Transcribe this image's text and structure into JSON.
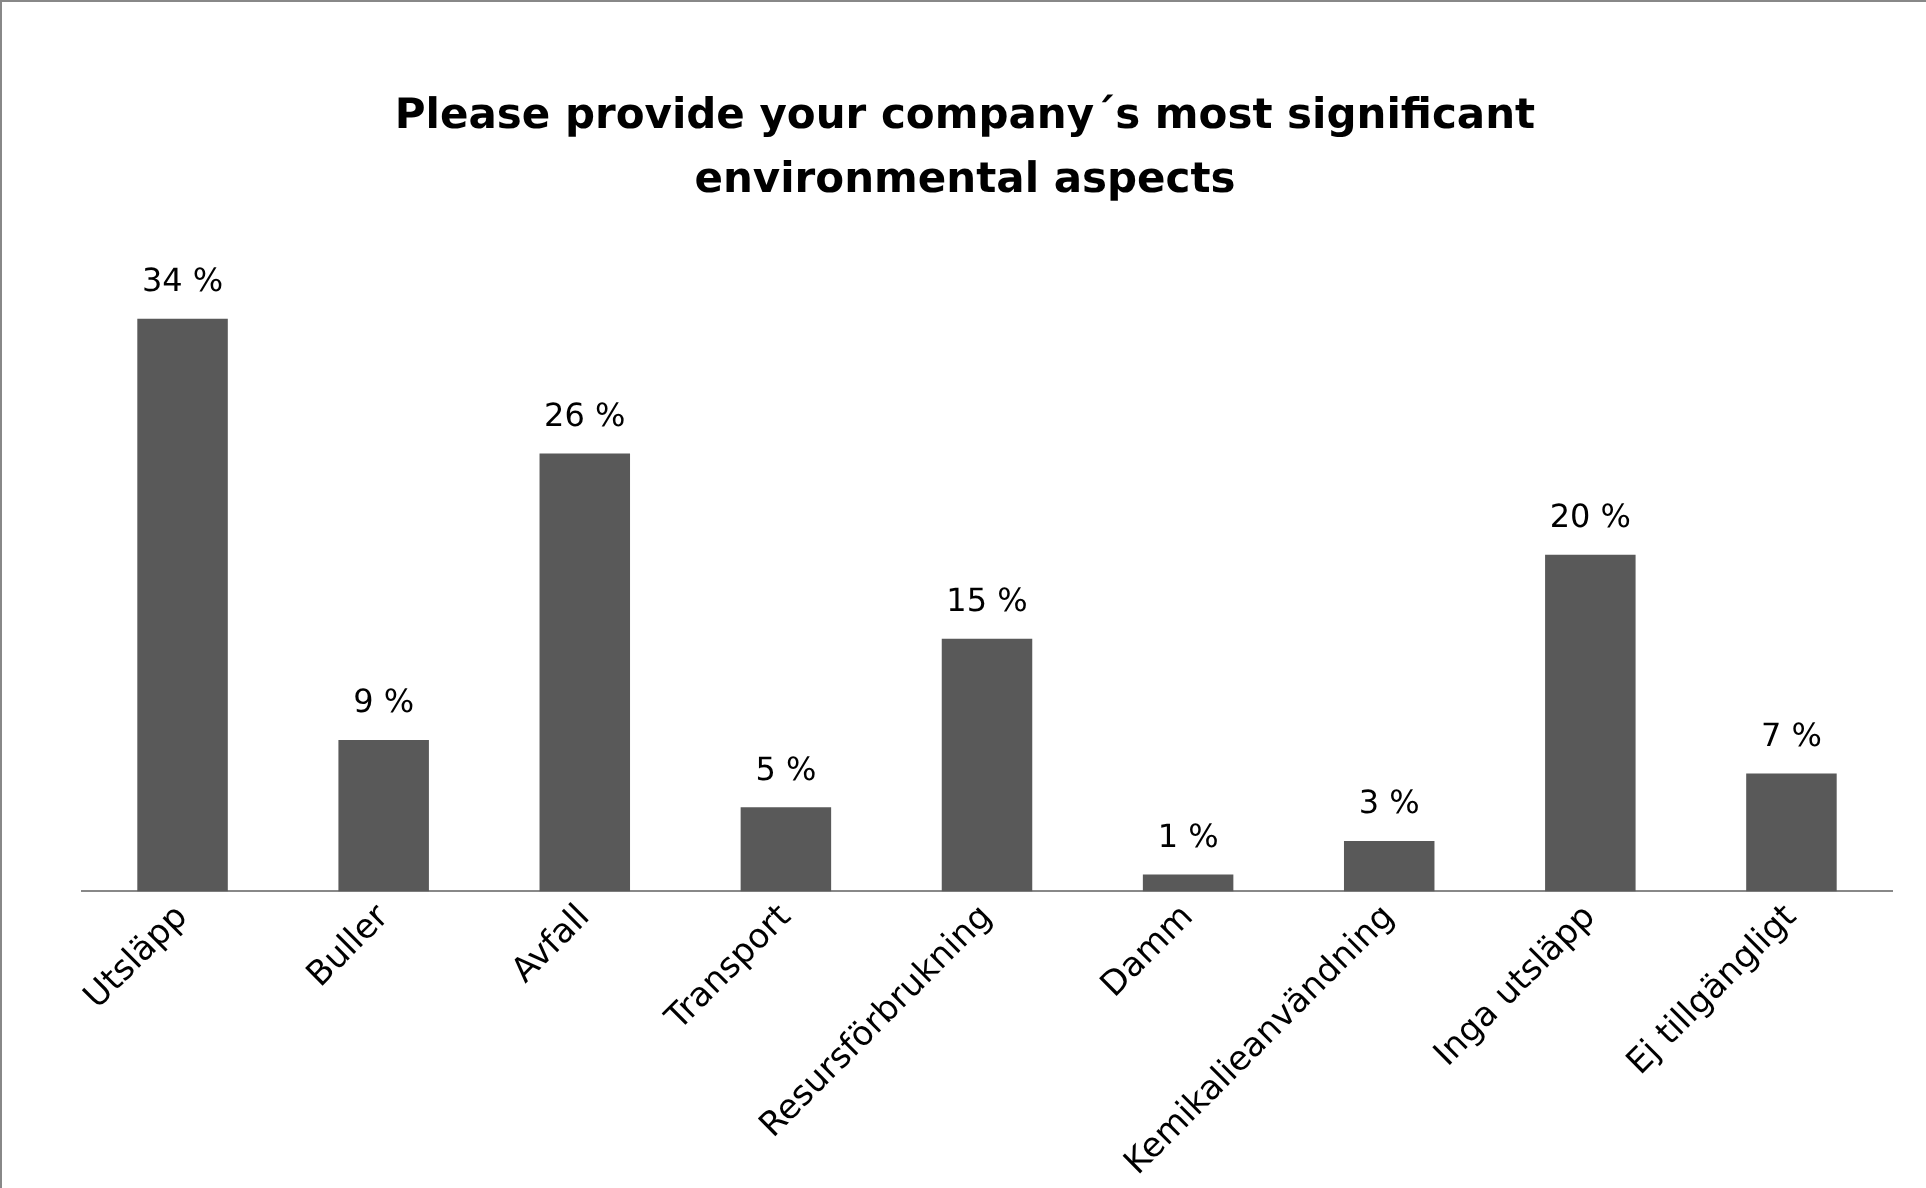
{
  "chart_data": {
    "type": "bar",
    "title": "Please provide your company´s most significant environmental aspects",
    "categories": [
      "Utsläpp",
      "Buller",
      "Avfall",
      "Transport",
      "Resursförbrukning",
      "Damm",
      "Kemikalieanvändning",
      "Inga utsläpp",
      "Ej tillgängligt"
    ],
    "values": [
      34,
      9,
      26,
      5,
      15,
      1,
      3,
      20,
      7
    ],
    "value_labels": [
      "34 %",
      "9 %",
      "26 %",
      "5 %",
      "15 %",
      "1 %",
      "3 %",
      "20 %",
      "7 %"
    ],
    "color": "#595959",
    "grid": false,
    "legend": false,
    "tick_labels": "x"
  }
}
